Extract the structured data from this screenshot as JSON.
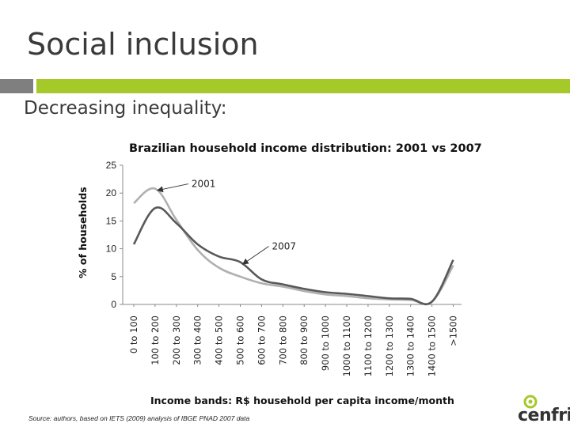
{
  "slide": {
    "title": "Social inclusion",
    "subtitle": "Decreasing inequality:",
    "source": "Source: authors, based on IETS (2009) analysis of IBGE PNAD 2007 data",
    "logo_text": "cenfri",
    "accent_color": "#a6c92a",
    "secondary_color": "#7f7f7f"
  },
  "chart_data": {
    "type": "line",
    "title": "Brazilian household income distribution: 2001 vs 2007",
    "xlabel": "Income bands: R$ household  per capita  income/month",
    "ylabel": "% of households",
    "ylim": [
      0,
      25
    ],
    "yticks": [
      0,
      5,
      10,
      15,
      20,
      25
    ],
    "grid": false,
    "legend": "inline annotations",
    "categories": [
      "0 to 100",
      "100 to 200",
      "200 to 300",
      "300 to 400",
      "400 to 500",
      "500 to 600",
      "600 to 700",
      "700 to 800",
      "800 to 900",
      "900 to 1000",
      "1000 to 1100",
      "1100 to 1200",
      "1200 to 1300",
      "1300 to 1400",
      "1400 to 1500",
      ">1500"
    ],
    "series": [
      {
        "name": "2001",
        "color": "#b0b0b0",
        "values": [
          18.2,
          20.8,
          15.2,
          9.8,
          6.6,
          5.0,
          3.8,
          3.2,
          2.4,
          1.8,
          1.5,
          1.1,
          0.9,
          0.8,
          0.5,
          7.0
        ]
      },
      {
        "name": "2007",
        "color": "#595959",
        "values": [
          10.8,
          17.3,
          14.6,
          10.8,
          8.6,
          7.6,
          4.5,
          3.6,
          2.8,
          2.2,
          1.9,
          1.5,
          1.1,
          1.0,
          0.5,
          8.0
        ]
      }
    ],
    "annotations": [
      {
        "label": "2001",
        "series": "2001",
        "category_index": 1,
        "value": 20.8
      },
      {
        "label": "2007",
        "series": "2007",
        "category_index": 5,
        "value": 7.6
      }
    ]
  }
}
